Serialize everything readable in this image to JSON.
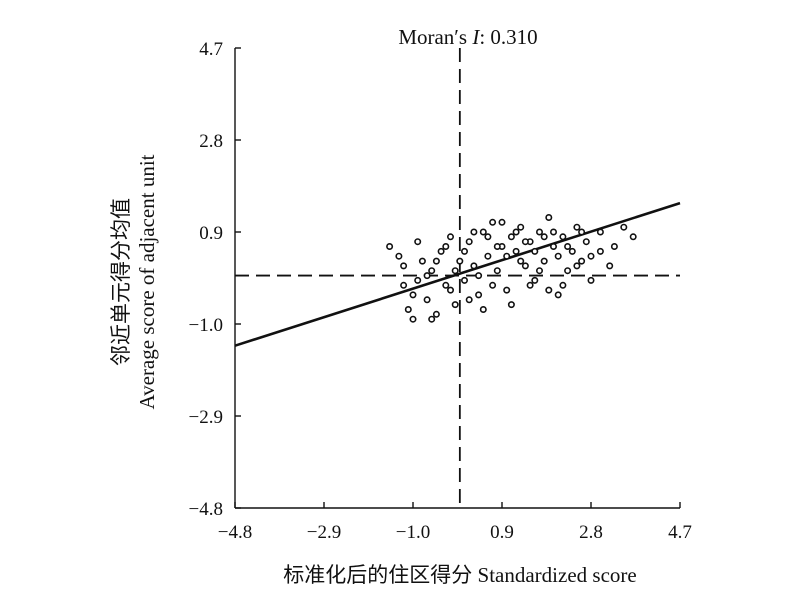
{
  "chart_data": {
    "type": "scatter",
    "title": "Moran′s I: 0.310",
    "title_prefix": "Moran′s ",
    "title_italic": "I",
    "title_suffix": ": 0.310",
    "xlabel": "标准化后的住区得分 Standardized score",
    "ylabel_cn": "邻近单元得分均值",
    "ylabel_en": "Average score of adjacent unit",
    "xlim": [
      -4.8,
      4.7
    ],
    "ylim": [
      -4.8,
      4.7
    ],
    "x_ticks": [
      -4.8,
      -2.9,
      -1.0,
      0.9,
      2.8,
      4.7
    ],
    "x_tick_labels": [
      "−4.8",
      "−2.9",
      "−1.0",
      "0.9",
      "2.8",
      "4.7"
    ],
    "y_ticks": [
      4.7,
      2.8,
      0.9,
      -1.0,
      -2.9,
      -4.8
    ],
    "y_tick_labels": [
      "4.7",
      "2.8",
      "0.9",
      "−1.0",
      "−2.9",
      "−4.8"
    ],
    "quadrant_lines": {
      "x": 0,
      "y": 0,
      "style": "dashed"
    },
    "regression_line": {
      "slope": 0.31,
      "intercept": 0.04
    },
    "grid": false,
    "series": [
      {
        "points": [
          [
            -1.5,
            0.6
          ],
          [
            -1.3,
            0.4
          ],
          [
            -1.2,
            -0.2
          ],
          [
            -1.1,
            -0.7
          ],
          [
            -1.0,
            -0.9
          ],
          [
            -0.9,
            -0.1
          ],
          [
            -0.8,
            0.3
          ],
          [
            -0.7,
            -0.5
          ],
          [
            -0.6,
            0.1
          ],
          [
            -0.5,
            -0.8
          ],
          [
            -0.4,
            0.5
          ],
          [
            -0.3,
            -0.2
          ],
          [
            -0.2,
            0.8
          ],
          [
            -0.1,
            -0.6
          ],
          [
            0.0,
            0.3
          ],
          [
            0.1,
            -0.1
          ],
          [
            0.2,
            0.7
          ],
          [
            0.3,
            0.2
          ],
          [
            0.4,
            -0.4
          ],
          [
            0.5,
            0.9
          ],
          [
            0.6,
            0.4
          ],
          [
            0.7,
            1.1
          ],
          [
            0.8,
            0.1
          ],
          [
            0.9,
            0.6
          ],
          [
            1.0,
            -0.3
          ],
          [
            1.1,
            0.8
          ],
          [
            1.2,
            0.5
          ],
          [
            1.3,
            1.0
          ],
          [
            1.4,
            0.2
          ],
          [
            1.5,
            0.7
          ],
          [
            1.6,
            -0.1
          ],
          [
            1.7,
            0.9
          ],
          [
            1.8,
            0.3
          ],
          [
            1.9,
            1.2
          ],
          [
            2.0,
            0.6
          ],
          [
            2.1,
            -0.4
          ],
          [
            2.2,
            0.8
          ],
          [
            2.3,
            0.1
          ],
          [
            2.4,
            0.5
          ],
          [
            2.5,
            1.0
          ],
          [
            2.6,
            0.3
          ],
          [
            2.7,
            0.7
          ],
          [
            2.8,
            0.4
          ],
          [
            3.0,
            0.9
          ],
          [
            3.2,
            0.2
          ],
          [
            3.3,
            0.6
          ],
          [
            3.5,
            1.0
          ],
          [
            3.7,
            0.8
          ],
          [
            -1.2,
            0.2
          ],
          [
            -1.0,
            -0.4
          ],
          [
            -0.9,
            0.7
          ],
          [
            -0.7,
            0.0
          ],
          [
            -0.6,
            -0.9
          ],
          [
            -0.5,
            0.3
          ],
          [
            -0.3,
            0.6
          ],
          [
            -0.2,
            -0.3
          ],
          [
            -0.1,
            0.1
          ],
          [
            0.1,
            0.5
          ],
          [
            0.2,
            -0.5
          ],
          [
            0.3,
            0.9
          ],
          [
            0.4,
            0.0
          ],
          [
            0.5,
            -0.7
          ],
          [
            0.6,
            0.8
          ],
          [
            0.7,
            -0.2
          ],
          [
            0.8,
            0.6
          ],
          [
            0.9,
            1.1
          ],
          [
            1.0,
            0.4
          ],
          [
            1.1,
            -0.6
          ],
          [
            1.2,
            0.9
          ],
          [
            1.3,
            0.3
          ],
          [
            1.4,
            0.7
          ],
          [
            1.5,
            -0.2
          ],
          [
            1.6,
            0.5
          ],
          [
            1.7,
            0.1
          ],
          [
            1.8,
            0.8
          ],
          [
            1.9,
            -0.3
          ],
          [
            2.0,
            0.9
          ],
          [
            2.1,
            0.4
          ],
          [
            2.2,
            -0.2
          ],
          [
            2.3,
            0.6
          ],
          [
            2.5,
            0.2
          ],
          [
            2.6,
            0.9
          ],
          [
            2.8,
            -0.1
          ],
          [
            3.0,
            0.5
          ]
        ]
      }
    ]
  }
}
